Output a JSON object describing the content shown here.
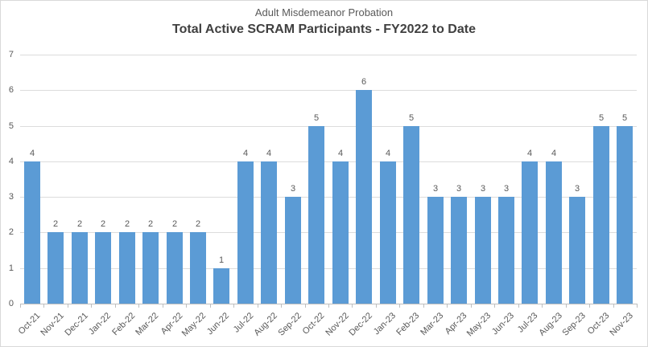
{
  "window": {
    "background": "#ffffff",
    "border_color": "#d9d9d9"
  },
  "chart_data": {
    "type": "bar",
    "subtitle": "Adult Misdemeanor Probation",
    "title": "Total Active SCRAM Participants - FY2022 to Date",
    "categories": [
      "Oct-21",
      "Nov-21",
      "Dec-21",
      "Jan-22",
      "Feb-22",
      "Mar-22",
      "Apr-22",
      "May-22",
      "Jun-22",
      "Jul-22",
      "Aug-22",
      "Sep-22",
      "Oct-22",
      "Nov-22",
      "Dec-22",
      "Jan-23",
      "Feb-23",
      "Mar-23",
      "Apr-23",
      "May-23",
      "Jun-23",
      "Jul-23",
      "Aug-23",
      "Sep-23",
      "Oct-23",
      "Nov-23"
    ],
    "values": [
      4,
      2,
      2,
      2,
      2,
      2,
      2,
      2,
      1,
      4,
      4,
      3,
      5,
      4,
      6,
      4,
      5,
      3,
      3,
      3,
      3,
      4,
      4,
      3,
      5,
      5
    ],
    "ylim": [
      0,
      7
    ],
    "ytick_step": 1,
    "yticks": [
      0,
      1,
      2,
      3,
      4,
      5,
      6,
      7
    ],
    "grid": true,
    "legend": "none",
    "data_labels": true,
    "xlabel": "",
    "ylabel": "",
    "colors": {
      "bar": "#5b9bd5",
      "gridline": "#dcdcdc",
      "axis_line": "#bfbfbf",
      "tick": "#bfbfbf",
      "axis_text": "#595959",
      "data_label_text": "#595959",
      "subtitle_text": "#595959",
      "title_text": "#404040"
    }
  }
}
